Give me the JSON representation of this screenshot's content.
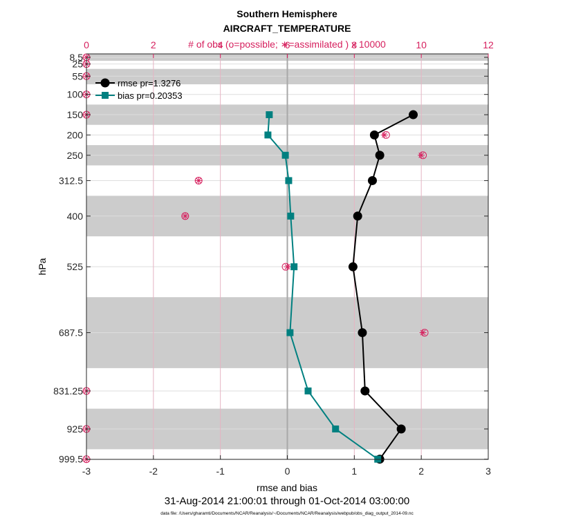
{
  "chart_data": {
    "type": "line",
    "title": "Southern Hemisphere",
    "subtitle": "AIRCRAFT_TEMPERATURE",
    "top_axis_label": "# of obs (o=possible; ∗=assimilated ) x 10000",
    "xlabel": "rmse and bias",
    "ylabel": "hPa",
    "date_range": "31-Aug-2014 21:00:01 through 01-Oct-2014 03:00:00",
    "footnote": "data file: /Users/gharamti/Documents/NCAR/Reanalysis/~/Documents/NCAR/Reanalysis/webpub/obs_diag_output_2014-09.nc",
    "xlim": [
      -3,
      3
    ],
    "x_ticks": [
      -3,
      -2,
      -1,
      0,
      1,
      2,
      3
    ],
    "x_tick_labels": [
      "-3",
      "-2",
      "-1",
      "0",
      "1",
      "2",
      "3"
    ],
    "top_xlim": [
      0,
      12
    ],
    "top_ticks": [
      0,
      2,
      4,
      6,
      8,
      10,
      12
    ],
    "top_tick_labels": [
      "0",
      "2",
      "4",
      "6",
      "8",
      "10",
      "12"
    ],
    "levels": [
      8.5,
      25,
      55,
      100,
      150,
      200,
      250,
      312.5,
      400,
      525,
      687.5,
      831.25,
      925,
      999.5
    ],
    "level_labels": [
      "8.5",
      "25",
      "55",
      "100",
      "150",
      "200",
      "250",
      "312.5",
      "400",
      "525",
      "687.5",
      "831.25",
      "925",
      "999.5"
    ],
    "shaded_layers": [
      [
        0,
        17
      ],
      [
        37,
        75
      ],
      [
        125,
        175
      ],
      [
        225,
        275
      ],
      [
        350,
        450
      ],
      [
        600,
        775
      ],
      [
        875,
        975
      ]
    ],
    "grid": true,
    "legend_position": "top-left",
    "series": [
      {
        "name": "rmse pr=1.3276",
        "color": "#000000",
        "marker": "circle",
        "levels": [
          150,
          200,
          250,
          312.5,
          400,
          525,
          687.5,
          831.25,
          925,
          999.5
        ],
        "values": [
          1.88,
          1.3,
          1.38,
          1.27,
          1.05,
          0.98,
          1.12,
          1.16,
          1.7,
          1.38
        ]
      },
      {
        "name": "bias pr=0.20353",
        "color": "#008080",
        "marker": "square",
        "levels": [
          150,
          200,
          250,
          312.5,
          400,
          525,
          687.5,
          831.25,
          925,
          999.5
        ],
        "values": [
          -0.27,
          -0.29,
          -0.03,
          0.02,
          0.05,
          0.1,
          0.04,
          0.31,
          0.72,
          1.35
        ]
      }
    ],
    "obs_counts": {
      "color": "#d6205e",
      "levels": [
        8.5,
        25,
        55,
        100,
        150,
        200,
        250,
        312.5,
        400,
        525,
        687.5,
        831.25,
        925,
        999.5
      ],
      "possible": [
        0,
        0,
        0,
        0,
        0,
        8.95,
        10.05,
        3.35,
        2.95,
        5.95,
        10.1,
        0,
        0,
        0
      ],
      "assimilated": [
        0,
        0,
        0,
        0,
        0,
        8.9,
        10.0,
        3.35,
        2.95,
        6.0,
        10.05,
        0,
        0,
        0
      ]
    }
  }
}
